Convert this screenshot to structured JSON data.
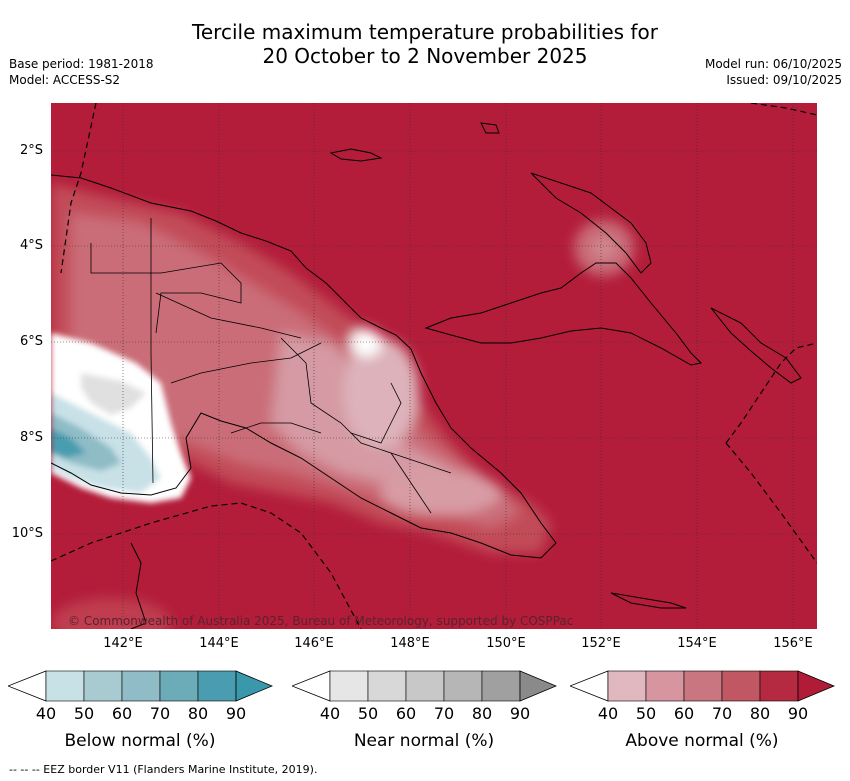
{
  "title_line1": "Tercile maximum temperature probabilities for",
  "title_line2": "20 October to 2 November 2025",
  "base_period": "Base period: 1981-2018",
  "model": "Model: ACCESS-S2",
  "model_run": "Model run: 06/10/2025",
  "issued": "Issued: 09/10/2025",
  "copyright": "© Commonwealth of Australia 2025, Bureau of Meteorology, supported by COSPPac",
  "lat_labels": [
    "2°S",
    "4°S",
    "6°S",
    "8°S",
    "10°S"
  ],
  "lon_labels": [
    "142°E",
    "144°E",
    "146°E",
    "148°E",
    "150°E",
    "152°E",
    "154°E",
    "156°E"
  ],
  "legends": [
    {
      "title": "Below normal (%)",
      "ticks": [
        "40",
        "50",
        "60",
        "70",
        "80",
        "90"
      ],
      "colors": [
        "#c8e1e7",
        "#a8cbd2",
        "#8fbcc6",
        "#6cabb8",
        "#4a9db0",
        "#3a98ac"
      ]
    },
    {
      "title": "Near normal (%)",
      "ticks": [
        "40",
        "50",
        "60",
        "70",
        "80",
        "90"
      ],
      "colors": [
        "#e6e6e6",
        "#d8d8d8",
        "#c8c8c8",
        "#b6b6b6",
        "#a0a0a0",
        "#8a8a8a"
      ]
    },
    {
      "title": "Above normal (%)",
      "ticks": [
        "40",
        "50",
        "60",
        "70",
        "80",
        "90"
      ],
      "colors": [
        "#e2b8c0",
        "#d6959f",
        "#c97680",
        "#c15763",
        "#b52a40",
        "#b01c38"
      ]
    }
  ],
  "footer": "--  --  -- EEZ border V11 (Flanders Marine Institute, 2019).",
  "colors": {
    "dominant_above": "#b31d3a",
    "ocean_land_bg": "#b31d3a"
  }
}
